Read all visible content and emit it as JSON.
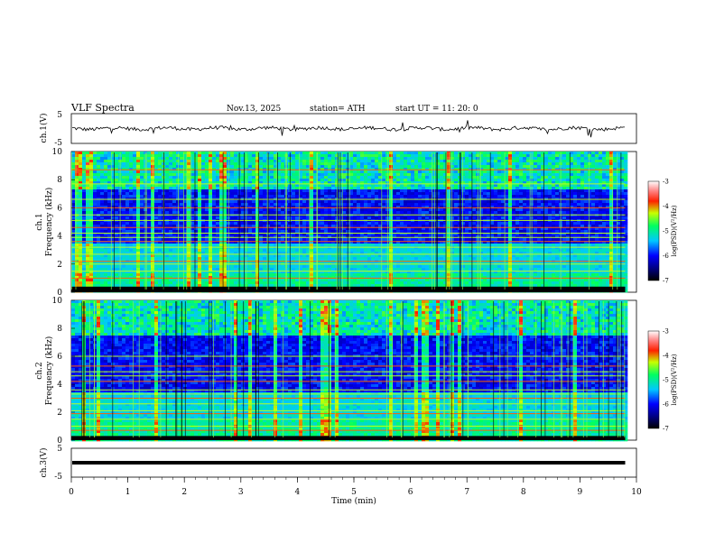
{
  "header": {
    "title": "VLF  Spectra",
    "date": "Nov.13, 2025",
    "station": "station= ATH",
    "start": "start  UT  =    11: 20: 0"
  },
  "colors": {
    "spec_low": "#000060",
    "spec_mid": "#00c0ff",
    "spec_high": "#ff2000",
    "trace": "#000000"
  },
  "chart_data": [
    {
      "type": "line",
      "name": "ch1-waveform",
      "ylabel": "ch.1(V)",
      "yticks": [
        "5",
        "-5"
      ],
      "ylim": [
        -5,
        5
      ],
      "xlim": [
        0,
        10
      ],
      "data_end": 9.8
    },
    {
      "type": "heatmap",
      "name": "ch1-spectrogram",
      "ylabel": "ch.1\nFrequency  (kHz)",
      "yticks": [
        "10",
        "8",
        "6",
        "4",
        "2",
        "0"
      ],
      "ylim": [
        0,
        10
      ],
      "xlim": [
        0,
        10
      ],
      "data_end": 9.8,
      "colorbar": {
        "ticks": [
          "-3",
          "-4",
          "-5",
          "-6",
          "-7"
        ],
        "label": "log(PSD)(V²/Hz)",
        "range": [
          -7,
          -3
        ]
      },
      "lines_khz": [
        1.0,
        1.5,
        2.0,
        2.2,
        2.7,
        3.2,
        3.6,
        3.9,
        4.2,
        4.6,
        5.1,
        5.5,
        6.0,
        6.6,
        7.7,
        8.7
      ],
      "low_band_khz": [
        0,
        0.4
      ]
    },
    {
      "type": "heatmap",
      "name": "ch2-spectrogram",
      "ylabel": "ch.2\nFrequency  (kHz)",
      "yticks": [
        "10",
        "8",
        "6",
        "4",
        "2",
        "0"
      ],
      "ylim": [
        0,
        10
      ],
      "xlim": [
        0,
        10
      ],
      "data_end": 9.8,
      "colorbar": {
        "ticks": [
          "-3",
          "-4",
          "-5",
          "-6",
          "-7"
        ],
        "label": "log(PSD)(V²/Hz)",
        "range": [
          -7,
          -3
        ]
      },
      "lines_khz": [
        0.7,
        1.0,
        1.5,
        1.9,
        2.1,
        2.6,
        3.0,
        3.3,
        3.6,
        4.2,
        4.6,
        4.9,
        5.3,
        6.0
      ],
      "low_band_khz": [
        0,
        0.3
      ]
    },
    {
      "type": "line",
      "name": "ch3-waveform",
      "ylabel": "ch.3(V)",
      "yticks": [
        "5",
        "-5"
      ],
      "ylim": [
        -5,
        5
      ],
      "xlim": [
        0,
        10
      ],
      "data_end": 9.8,
      "level_v": 0
    }
  ],
  "xaxis": {
    "label": "Time  (min)",
    "ticks": [
      "0",
      "1",
      "2",
      "3",
      "4",
      "5",
      "6",
      "7",
      "8",
      "9",
      "10"
    ],
    "range": [
      0,
      10
    ]
  }
}
